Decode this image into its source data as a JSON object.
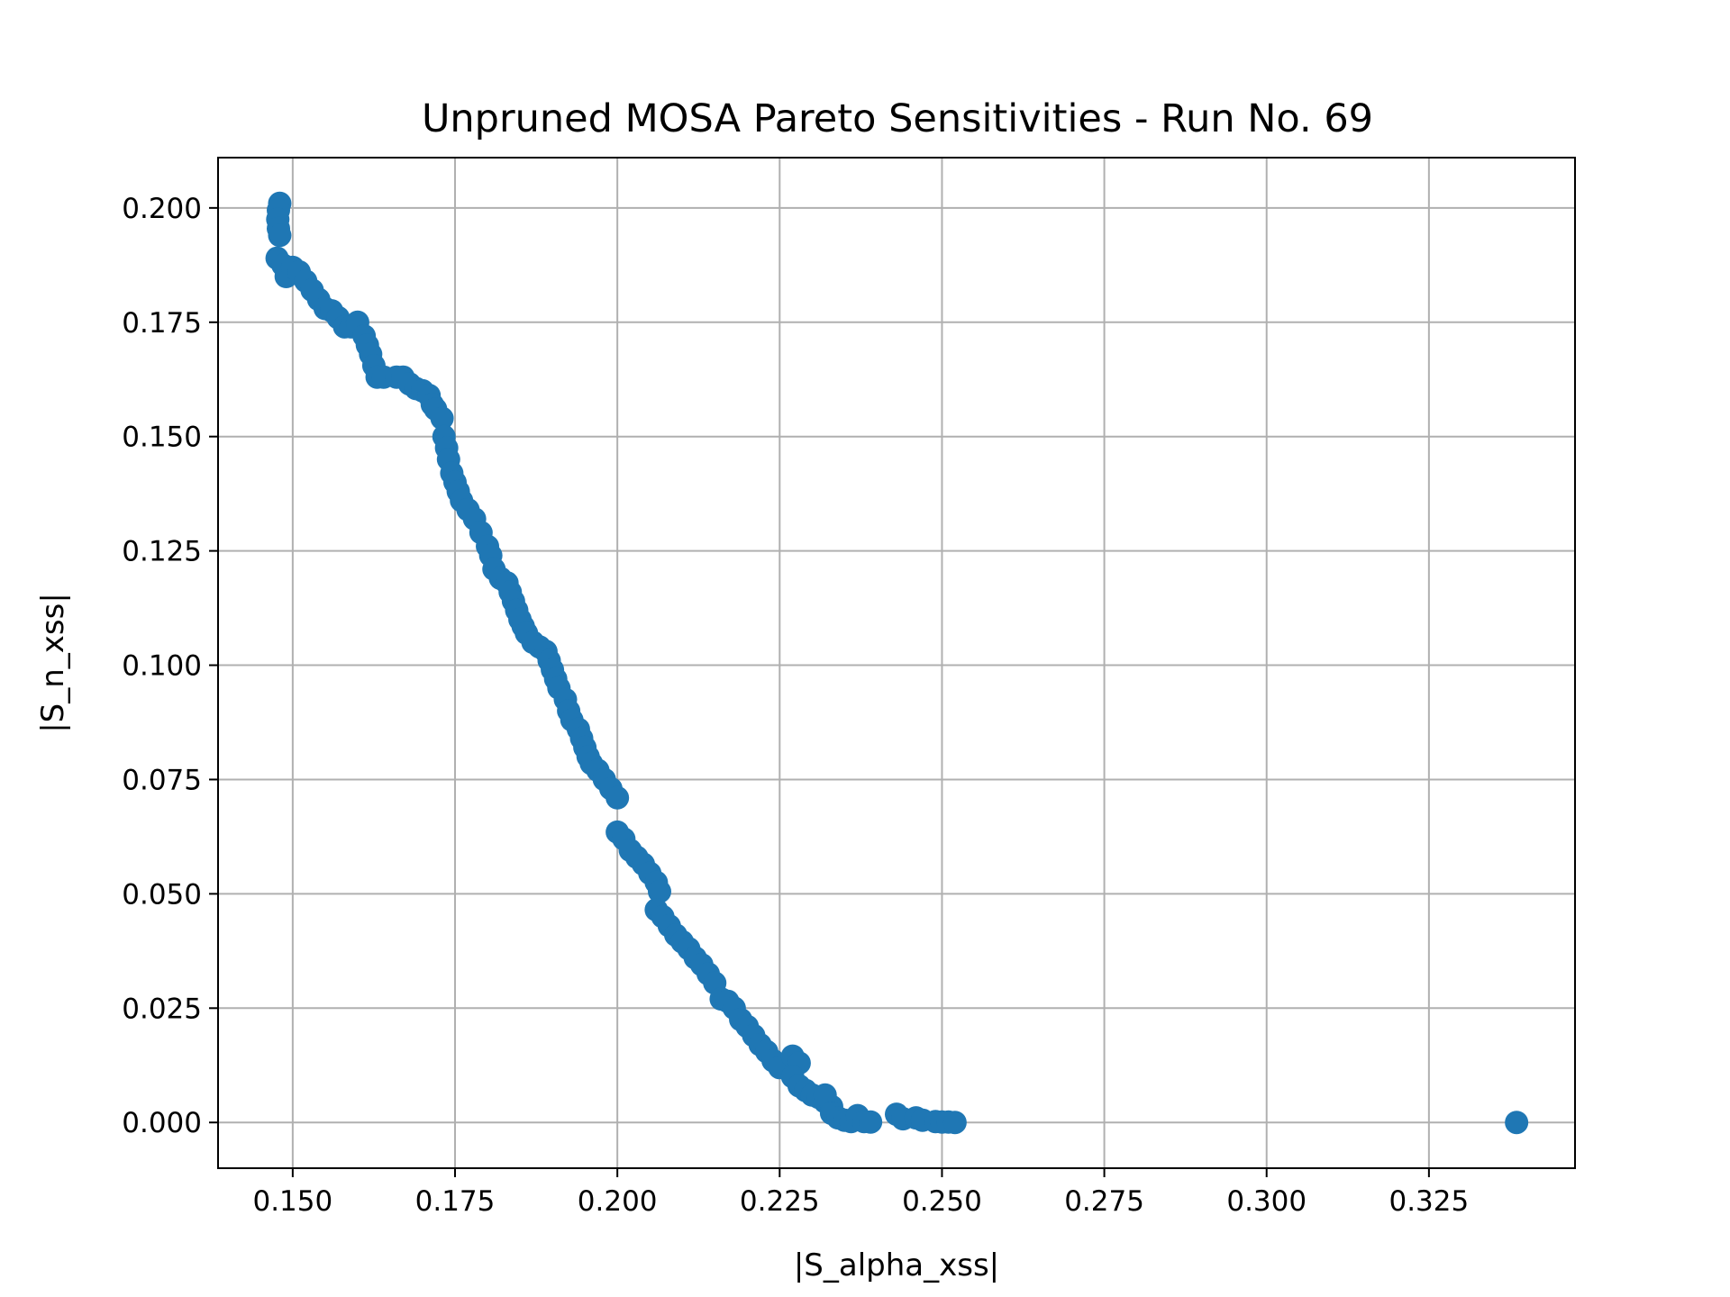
{
  "chart_data": {
    "type": "scatter",
    "title": "Unpruned MOSA Pareto Sensitivities - Run No. 69",
    "xlabel": "|S_alpha_xss|",
    "ylabel": "|S_n_xss|",
    "xlim": [
      0.1385,
      0.3475
    ],
    "ylim": [
      -0.01,
      0.211
    ],
    "xticks": [
      0.15,
      0.175,
      0.2,
      0.225,
      0.25,
      0.275,
      0.3,
      0.325
    ],
    "yticks": [
      0.0,
      0.025,
      0.05,
      0.075,
      0.1,
      0.125,
      0.15,
      0.175,
      0.2
    ],
    "xtick_labels": [
      "0.150",
      "0.175",
      "0.200",
      "0.225",
      "0.250",
      "0.275",
      "0.300",
      "0.325"
    ],
    "ytick_labels": [
      "0.000",
      "0.025",
      "0.050",
      "0.075",
      "0.100",
      "0.125",
      "0.150",
      "0.175",
      "0.200"
    ],
    "grid": true,
    "marker_color": "#1f77b4",
    "points": [
      [
        0.148,
        0.201
      ],
      [
        0.1478,
        0.1995
      ],
      [
        0.1477,
        0.1975
      ],
      [
        0.1478,
        0.1955
      ],
      [
        0.148,
        0.194
      ],
      [
        0.1476,
        0.189
      ],
      [
        0.1485,
        0.1875
      ],
      [
        0.149,
        0.185
      ],
      [
        0.15,
        0.187
      ],
      [
        0.151,
        0.186
      ],
      [
        0.152,
        0.184
      ],
      [
        0.153,
        0.182
      ],
      [
        0.154,
        0.18
      ],
      [
        0.155,
        0.178
      ],
      [
        0.156,
        0.1775
      ],
      [
        0.157,
        0.176
      ],
      [
        0.158,
        0.174
      ],
      [
        0.159,
        0.174
      ],
      [
        0.16,
        0.175
      ],
      [
        0.161,
        0.172
      ],
      [
        0.1615,
        0.17
      ],
      [
        0.162,
        0.168
      ],
      [
        0.1625,
        0.1655
      ],
      [
        0.163,
        0.163
      ],
      [
        0.164,
        0.163
      ],
      [
        0.166,
        0.163
      ],
      [
        0.167,
        0.163
      ],
      [
        0.168,
        0.1615
      ],
      [
        0.169,
        0.1605
      ],
      [
        0.17,
        0.16
      ],
      [
        0.171,
        0.159
      ],
      [
        0.1715,
        0.157
      ],
      [
        0.172,
        0.156
      ],
      [
        0.173,
        0.154
      ],
      [
        0.1733,
        0.15
      ],
      [
        0.1737,
        0.1475
      ],
      [
        0.174,
        0.145
      ],
      [
        0.1745,
        0.142
      ],
      [
        0.175,
        0.14
      ],
      [
        0.1755,
        0.138
      ],
      [
        0.176,
        0.136
      ],
      [
        0.177,
        0.134
      ],
      [
        0.178,
        0.132
      ],
      [
        0.179,
        0.129
      ],
      [
        0.18,
        0.126
      ],
      [
        0.1805,
        0.124
      ],
      [
        0.181,
        0.121
      ],
      [
        0.182,
        0.119
      ],
      [
        0.183,
        0.118
      ],
      [
        0.1835,
        0.116
      ],
      [
        0.184,
        0.114
      ],
      [
        0.1845,
        0.112
      ],
      [
        0.185,
        0.11
      ],
      [
        0.1855,
        0.1085
      ],
      [
        0.186,
        0.107
      ],
      [
        0.187,
        0.105
      ],
      [
        0.188,
        0.104
      ],
      [
        0.189,
        0.103
      ],
      [
        0.1895,
        0.101
      ],
      [
        0.19,
        0.099
      ],
      [
        0.1905,
        0.097
      ],
      [
        0.191,
        0.095
      ],
      [
        0.192,
        0.0925
      ],
      [
        0.1925,
        0.09
      ],
      [
        0.193,
        0.088
      ],
      [
        0.194,
        0.086
      ],
      [
        0.1945,
        0.084
      ],
      [
        0.195,
        0.082
      ],
      [
        0.1955,
        0.08
      ],
      [
        0.196,
        0.0785
      ],
      [
        0.197,
        0.077
      ],
      [
        0.198,
        0.075
      ],
      [
        0.199,
        0.073
      ],
      [
        0.2,
        0.071
      ],
      [
        0.2,
        0.0635
      ],
      [
        0.201,
        0.062
      ],
      [
        0.202,
        0.0595
      ],
      [
        0.203,
        0.058
      ],
      [
        0.204,
        0.0565
      ],
      [
        0.205,
        0.0545
      ],
      [
        0.206,
        0.0525
      ],
      [
        0.2065,
        0.0505
      ],
      [
        0.206,
        0.0465
      ],
      [
        0.207,
        0.045
      ],
      [
        0.208,
        0.043
      ],
      [
        0.209,
        0.041
      ],
      [
        0.21,
        0.0395
      ],
      [
        0.211,
        0.038
      ],
      [
        0.212,
        0.036
      ],
      [
        0.213,
        0.0345
      ],
      [
        0.214,
        0.0325
      ],
      [
        0.215,
        0.0305
      ],
      [
        0.216,
        0.027
      ],
      [
        0.217,
        0.0265
      ],
      [
        0.218,
        0.025
      ],
      [
        0.219,
        0.0225
      ],
      [
        0.22,
        0.021
      ],
      [
        0.221,
        0.019
      ],
      [
        0.222,
        0.017
      ],
      [
        0.223,
        0.0155
      ],
      [
        0.224,
        0.0135
      ],
      [
        0.225,
        0.012
      ],
      [
        0.227,
        0.0145
      ],
      [
        0.228,
        0.013
      ],
      [
        0.227,
        0.01
      ],
      [
        0.228,
        0.008
      ],
      [
        0.229,
        0.007
      ],
      [
        0.23,
        0.006
      ],
      [
        0.231,
        0.0055
      ],
      [
        0.232,
        0.0045
      ],
      [
        0.233,
        0.0035
      ],
      [
        0.232,
        0.006
      ],
      [
        0.233,
        0.002
      ],
      [
        0.234,
        0.001
      ],
      [
        0.235,
        0.0005
      ],
      [
        0.236,
        0.0002
      ],
      [
        0.237,
        0.0015
      ],
      [
        0.238,
        0.0002
      ],
      [
        0.239,
        0.0001
      ],
      [
        0.243,
        0.0018
      ],
      [
        0.244,
        0.0008
      ],
      [
        0.246,
        0.001
      ],
      [
        0.247,
        0.0005
      ],
      [
        0.249,
        0.0002
      ],
      [
        0.25,
        0.0001
      ],
      [
        0.251,
        0.0001
      ],
      [
        0.252,
        0.0
      ],
      [
        0.3385,
        0.0
      ]
    ]
  }
}
